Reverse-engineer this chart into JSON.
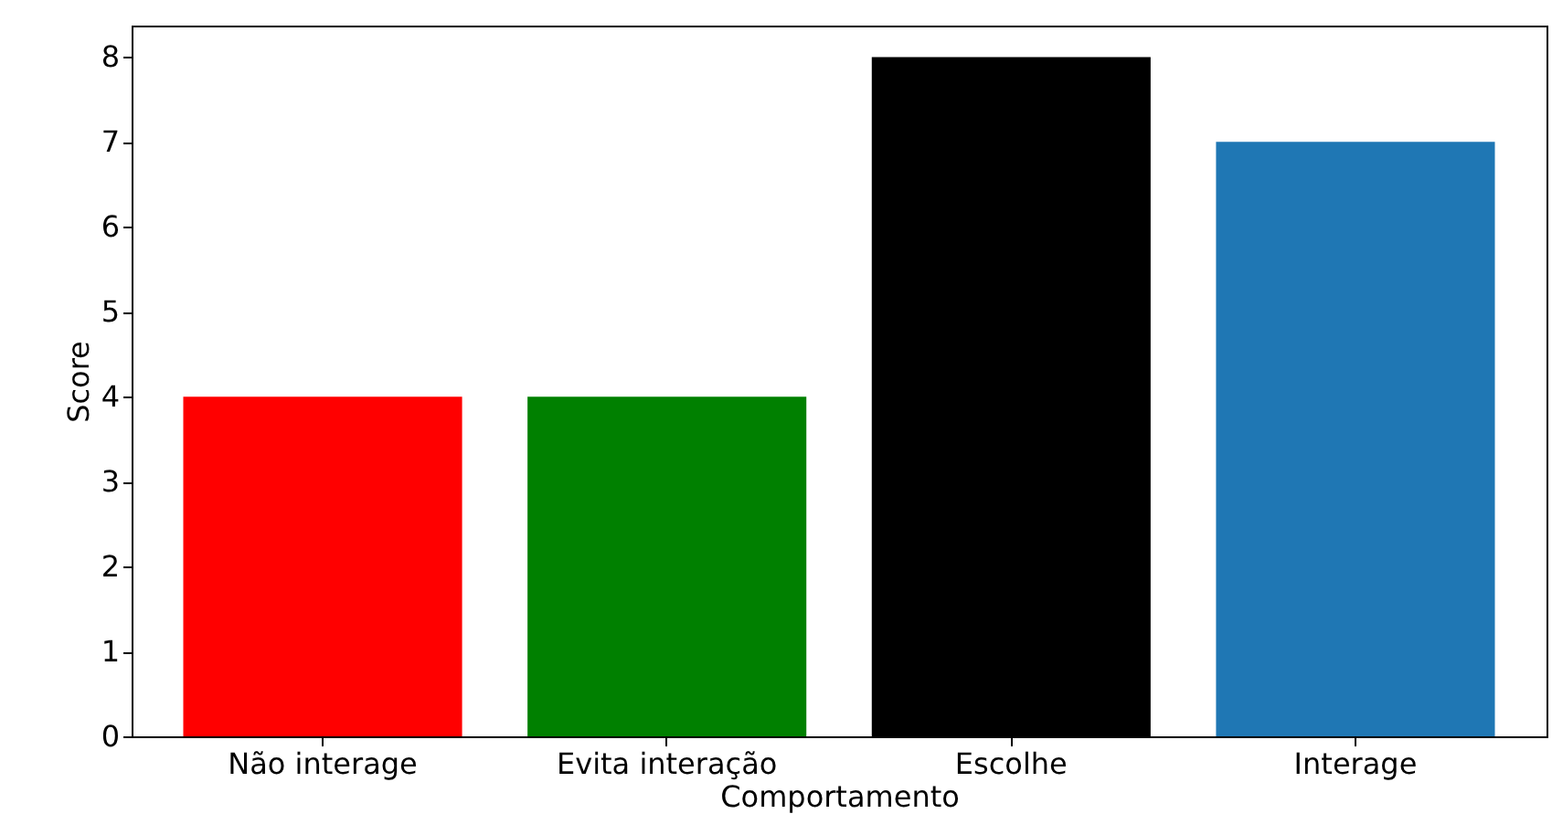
{
  "chart_data": {
    "type": "bar",
    "xlabel": "Comportamento",
    "ylabel": "Score",
    "categories": [
      "Não interage",
      "Evita interação",
      "Escolhe",
      "Interage"
    ],
    "values": [
      4,
      4,
      8,
      7
    ],
    "colors": [
      "#ff0000",
      "#008000",
      "#000000",
      "#1f77b4"
    ],
    "ylim": [
      0,
      8.37
    ],
    "yticks": [
      0,
      1,
      2,
      3,
      4,
      5,
      6,
      7,
      8
    ],
    "grid": false
  }
}
